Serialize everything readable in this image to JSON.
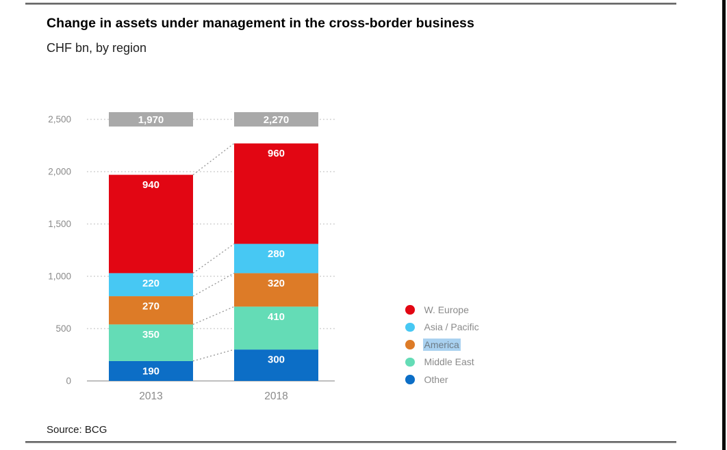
{
  "header": {
    "title": "Change in assets under management in the cross-border business",
    "subtitle": "CHF bn, by region"
  },
  "chart_data": {
    "type": "bar",
    "stacked": true,
    "title": "Change in assets under management in the cross-border business",
    "subtitle_units": "CHF bn, by region",
    "categories": [
      "2013",
      "2018"
    ],
    "series": [
      {
        "name": "Other",
        "color": "#0c6ec6",
        "values": [
          190,
          300
        ]
      },
      {
        "name": "Middle East",
        "color": "#64dcb6",
        "values": [
          350,
          410
        ]
      },
      {
        "name": "America",
        "color": "#dd7b27",
        "values": [
          270,
          320
        ]
      },
      {
        "name": "Asia / Pacific",
        "color": "#47c8f3",
        "values": [
          220,
          280
        ]
      },
      {
        "name": "W. Europe",
        "color": "#e20613",
        "values": [
          940,
          960
        ]
      }
    ],
    "totals_values": [
      1970,
      2270
    ],
    "totals_labels": [
      "1,970",
      "2,270"
    ],
    "total_badge_color": "#a9a9a9",
    "yticks": [
      0,
      500,
      1000,
      1500,
      2000,
      2500
    ],
    "ytick_labels": [
      "0",
      "500",
      "1,000",
      "1,500",
      "2,000",
      "2,500"
    ],
    "ylim": [
      0,
      2500
    ],
    "xlabel": "",
    "ylabel": "",
    "grid": "horizontal-dotted",
    "connector_lines": "dotted diagonals linking segment boundaries between bars",
    "legend_position": "right",
    "value_label_color": "#ffffff"
  },
  "legend": {
    "items": [
      {
        "label": "W. Europe",
        "color": "#e20613",
        "highlighted": false
      },
      {
        "label": "Asia / Pacific",
        "color": "#47c8f3",
        "highlighted": false
      },
      {
        "label": "America",
        "color": "#dd7b27",
        "highlighted": true
      },
      {
        "label": "Middle East",
        "color": "#64dcb6",
        "highlighted": false
      },
      {
        "label": "Other",
        "color": "#0c6ec6",
        "highlighted": false
      }
    ],
    "highlight_color": "#a9d1f0"
  },
  "footer": {
    "source": "Source: BCG"
  },
  "colors": {
    "axis_text": "#8a8a8a",
    "gridline": "#cdcdcd",
    "baseline": "#a9a9a9",
    "connector": "#949494",
    "rule": "#5a5a5a",
    "right_edge": "#0a0a0a"
  }
}
